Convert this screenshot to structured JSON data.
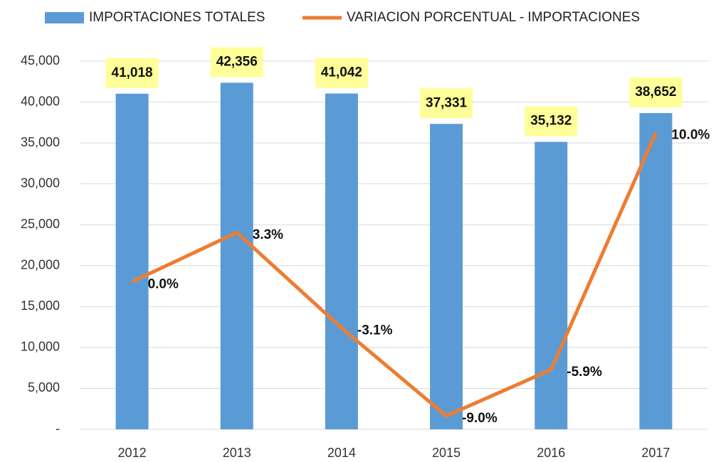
{
  "chart_data": {
    "type": "bar_line",
    "categories": [
      "2012",
      "2013",
      "2014",
      "2015",
      "2016",
      "2017"
    ],
    "series": [
      {
        "name": "IMPORTACIONES TOTALES",
        "color": "#5b9bd5",
        "type": "bar",
        "values": [
          41018,
          42356,
          41042,
          37331,
          35132,
          38652
        ],
        "value_labels": [
          "41,018",
          "42,356",
          "41,042",
          "37,331",
          "35,132",
          "38,652"
        ]
      },
      {
        "name": "VARIACION PORCENTUAL - IMPORTACIONES",
        "color": "#ed7d31",
        "type": "line",
        "axis": "y2",
        "values": [
          0.0,
          3.3,
          -3.1,
          -9.0,
          -5.9,
          10.0
        ],
        "value_labels": [
          "0.0%",
          "3.3%",
          "-3.1%",
          "-9.0%",
          "-5.9%",
          "10.0%"
        ]
      }
    ],
    "ylim": [
      0,
      45000
    ],
    "yticks": [
      {
        "value": 0,
        "label": "-"
      },
      {
        "value": 5000,
        "label": "5,000"
      },
      {
        "value": 10000,
        "label": "10,000"
      },
      {
        "value": 15000,
        "label": "15,000"
      },
      {
        "value": 20000,
        "label": "20,000"
      },
      {
        "value": 25000,
        "label": "25,000"
      },
      {
        "value": 30000,
        "label": "30,000"
      },
      {
        "value": 35000,
        "label": "35,000"
      },
      {
        "value": 40000,
        "label": "40,000"
      },
      {
        "value": 45000,
        "label": "45,000"
      }
    ],
    "y2lim": [
      -9.9,
      14.8
    ],
    "grid": true,
    "legend": "top",
    "label_background": "#ffff99"
  }
}
